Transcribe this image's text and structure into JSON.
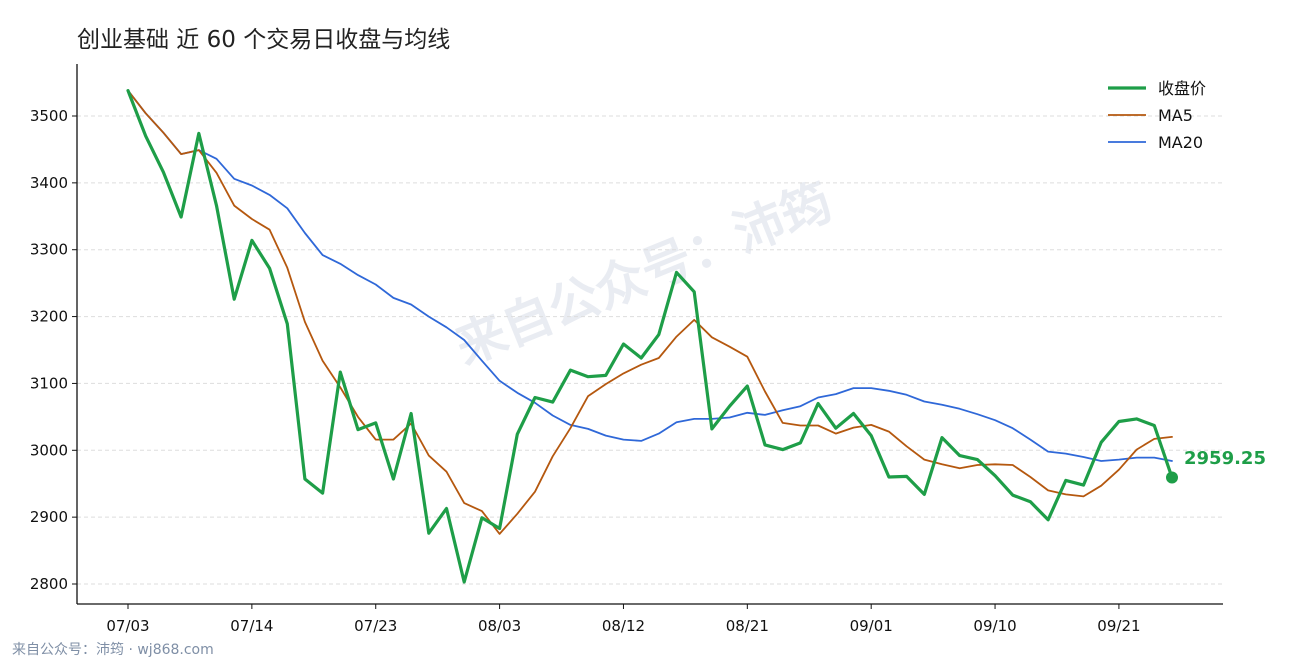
{
  "page": {
    "watermark": "来自公众号：沛筠",
    "source_note": "来自公众号：沛筠 · wj868.com"
  },
  "chart_data": {
    "type": "line",
    "title": "创业基础 近 60 个交易日收盘与均线",
    "xlabel": "",
    "ylabel": "",
    "xlim": [
      0,
      59
    ],
    "ylim": [
      2760,
      3575
    ],
    "yticks": [
      2800,
      2900,
      3000,
      3100,
      3200,
      3300,
      3400,
      3500
    ],
    "xticks": [
      {
        "i": 0,
        "label": "07/03"
      },
      {
        "i": 7,
        "label": "07/14"
      },
      {
        "i": 14,
        "label": "07/23"
      },
      {
        "i": 21,
        "label": "08/03"
      },
      {
        "i": 28,
        "label": "08/12"
      },
      {
        "i": 35,
        "label": "08/21"
      },
      {
        "i": 42,
        "label": "09/01"
      },
      {
        "i": 49,
        "label": "09/10"
      },
      {
        "i": 56,
        "label": "09/21"
      }
    ],
    "grid": "y",
    "legend_position": "top-right",
    "series": [
      {
        "name": "收盘价",
        "color": "#1e9e48",
        "values": [
          3538,
          3470,
          3416,
          3349,
          3474,
          3366,
          3226,
          3314,
          3272,
          3189,
          2957,
          2936,
          3117,
          3031,
          3041,
          2957,
          3055,
          2876,
          2913,
          2803,
          2899,
          2883,
          3024,
          3079,
          3072,
          3120,
          3110,
          3112,
          3159,
          3138,
          3173,
          3266,
          3237,
          3032,
          3066,
          3096,
          3008,
          3001,
          3011,
          3070,
          3033,
          3055,
          3022,
          2960,
          2961,
          2934,
          3019,
          2992,
          2986,
          2962,
          2933,
          2923,
          2896,
          2955,
          2948,
          3012,
          3043,
          3047,
          3037,
          2959.25
        ]
      },
      {
        "name": "MA5",
        "color": "#b5580f",
        "values": [
          3538,
          3504,
          3475,
          3443,
          3449,
          3415,
          3366,
          3346,
          3330,
          3273,
          3192,
          3134,
          3094,
          3050,
          3016,
          3016,
          3040,
          2992,
          2968,
          2921,
          2909,
          2875,
          2905,
          2938,
          2991,
          3033,
          3081,
          3099,
          3115,
          3128,
          3138,
          3170,
          3195,
          3169,
          3155,
          3140,
          3088,
          3041,
          3037,
          3037,
          3025,
          3034,
          3038,
          3028,
          3006,
          2986,
          2979,
          2973,
          2978,
          2979,
          2978,
          2960,
          2940,
          2934,
          2931,
          2947,
          2971,
          3001,
          3017,
          3020
        ]
      },
      {
        "name": "MA20",
        "color": "#2f68d8",
        "values": [
          3538,
          3504,
          3475,
          3443,
          3449,
          3436,
          3406,
          3396,
          3382,
          3362,
          3325,
          3292,
          3279,
          3262,
          3248,
          3228,
          3218,
          3200,
          3184,
          3165,
          3134,
          3104,
          3086,
          3071,
          3052,
          3038,
          3032,
          3022,
          3016,
          3014,
          3025,
          3042,
          3047,
          3047,
          3049,
          3056,
          3053,
          3060,
          3066,
          3079,
          3084,
          3093,
          3093,
          3089,
          3083,
          3073,
          3068,
          3062,
          3054,
          3045,
          3033,
          3016,
          2998,
          2995,
          2990,
          2984,
          2986,
          2989,
          2989,
          2984
        ]
      }
    ],
    "last_value_label": "2959.25"
  }
}
